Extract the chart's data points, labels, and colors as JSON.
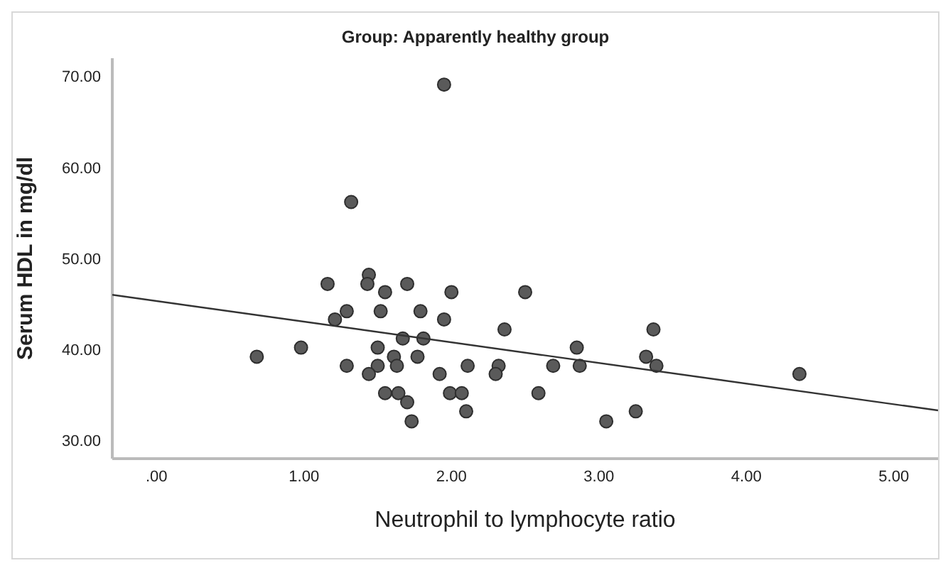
{
  "chart_data": {
    "type": "scatter",
    "title": "Group: Apparently healthy group",
    "xlabel": "Neutrophil to lymphocyte ratio",
    "ylabel": "Serum HDL in mg/dl",
    "xlim": [
      -0.3,
      5.3
    ],
    "ylim": [
      28,
      72
    ],
    "xticks": [
      {
        "value": 0,
        "label": ".00"
      },
      {
        "value": 1,
        "label": "1.00"
      },
      {
        "value": 2,
        "label": "2.00"
      },
      {
        "value": 3,
        "label": "3.00"
      },
      {
        "value": 4,
        "label": "4.00"
      },
      {
        "value": 5,
        "label": "5.00"
      }
    ],
    "yticks": [
      {
        "value": 30,
        "label": "30.00"
      },
      {
        "value": 40,
        "label": "40.00"
      },
      {
        "value": 50,
        "label": "50.00"
      },
      {
        "value": 60,
        "label": "60.00"
      },
      {
        "value": 70,
        "label": "70.00"
      }
    ],
    "grid": false,
    "series": [
      {
        "color": "#5a5a5a",
        "marker": "circle",
        "x": [
          1.95,
          1.32,
          1.16,
          1.44,
          1.43,
          1.55,
          1.7,
          2.0,
          2.5,
          1.29,
          1.52,
          1.79,
          1.21,
          1.95,
          2.36,
          1.67,
          1.81,
          1.5,
          0.98,
          0.68,
          1.61,
          1.77,
          1.29,
          1.5,
          1.63,
          2.11,
          2.32,
          1.44,
          1.92,
          2.3,
          1.55,
          1.64,
          1.99,
          2.07,
          1.7,
          2.1,
          1.73,
          2.59,
          3.37,
          2.85,
          2.69,
          2.87,
          3.32,
          3.39,
          4.36,
          3.05,
          3.25
        ],
        "values": [
          69.1,
          56.2,
          47.2,
          48.2,
          47.2,
          46.3,
          47.2,
          46.3,
          46.3,
          44.2,
          44.2,
          44.2,
          43.3,
          43.3,
          42.2,
          41.2,
          41.2,
          40.2,
          40.2,
          39.2,
          39.2,
          39.2,
          38.2,
          38.2,
          38.2,
          38.2,
          38.2,
          37.3,
          37.3,
          37.3,
          35.2,
          35.2,
          35.2,
          35.2,
          34.2,
          33.2,
          32.1,
          35.2,
          42.2,
          40.2,
          38.2,
          38.2,
          39.2,
          38.2,
          37.3,
          32.1,
          33.2
        ]
      },
      {
        "type": "line",
        "color": "#333333",
        "marker": "none",
        "line_style": "solid",
        "x": [
          -0.3,
          5.3
        ],
        "values": [
          46.0,
          33.3
        ]
      }
    ]
  }
}
